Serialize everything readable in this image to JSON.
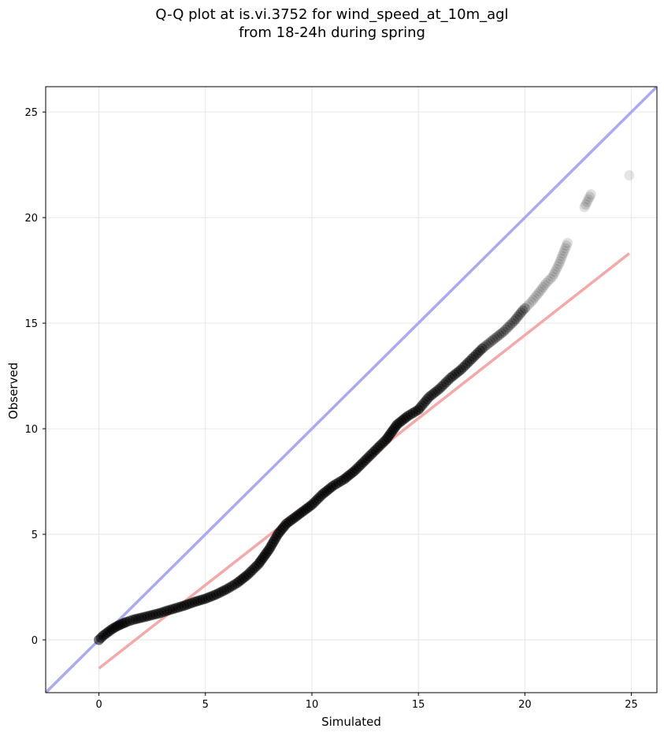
{
  "chart_data": {
    "type": "scatter",
    "title": "Q-Q plot at is.vi.3752 for wind_speed_at_10m_agl",
    "subtitle": "from 18-24h during spring",
    "xlabel": "Simulated",
    "ylabel": "Observed",
    "xlim": [
      -2.5,
      26.2
    ],
    "ylim": [
      -2.5,
      26.2
    ],
    "xticks": [
      0,
      5,
      10,
      15,
      20,
      25
    ],
    "yticks": [
      0,
      5,
      10,
      15,
      20,
      25
    ],
    "grid": true,
    "legend": false,
    "colors": {
      "points": "#000000",
      "identity_line": "#aaaaf2",
      "fit_line": "#f5a8a8"
    },
    "identity_line": {
      "x": [
        -2.5,
        26.2
      ],
      "y": [
        -2.5,
        26.2
      ]
    },
    "fit_line": {
      "x": [
        0.0,
        24.9
      ],
      "y": [
        -1.35,
        18.3
      ]
    },
    "points": {
      "x": [
        0.0,
        0.2,
        0.4,
        0.6,
        0.8,
        1.0,
        1.3,
        1.6,
        2.0,
        2.4,
        2.8,
        3.2,
        3.6,
        4.0,
        4.5,
        5.0,
        5.5,
        6.0,
        6.5,
        7.0,
        7.5,
        8.0,
        8.4,
        8.8,
        9.2,
        9.6,
        10.0,
        10.5,
        11.0,
        11.5,
        12.0,
        12.5,
        13.0,
        13.5,
        14.0,
        14.5,
        15.0,
        15.5,
        16.0,
        16.5,
        17.0,
        17.5,
        18.0,
        18.5,
        19.0,
        19.5,
        19.9,
        20.3,
        20.7,
        21.0,
        21.3,
        21.6,
        22.0,
        22.8,
        23.1,
        24.9
      ],
      "y": [
        0.0,
        0.2,
        0.35,
        0.5,
        0.62,
        0.72,
        0.85,
        0.95,
        1.05,
        1.15,
        1.25,
        1.38,
        1.5,
        1.62,
        1.8,
        1.95,
        2.15,
        2.4,
        2.7,
        3.1,
        3.6,
        4.3,
        5.0,
        5.5,
        5.8,
        6.1,
        6.4,
        6.9,
        7.3,
        7.6,
        8.0,
        8.5,
        9.0,
        9.5,
        10.2,
        10.6,
        10.9,
        11.5,
        11.9,
        12.4,
        12.8,
        13.3,
        13.8,
        14.2,
        14.6,
        15.1,
        15.6,
        16.0,
        16.5,
        16.9,
        17.2,
        17.8,
        18.8,
        20.5,
        21.1,
        22.0
      ]
    }
  }
}
